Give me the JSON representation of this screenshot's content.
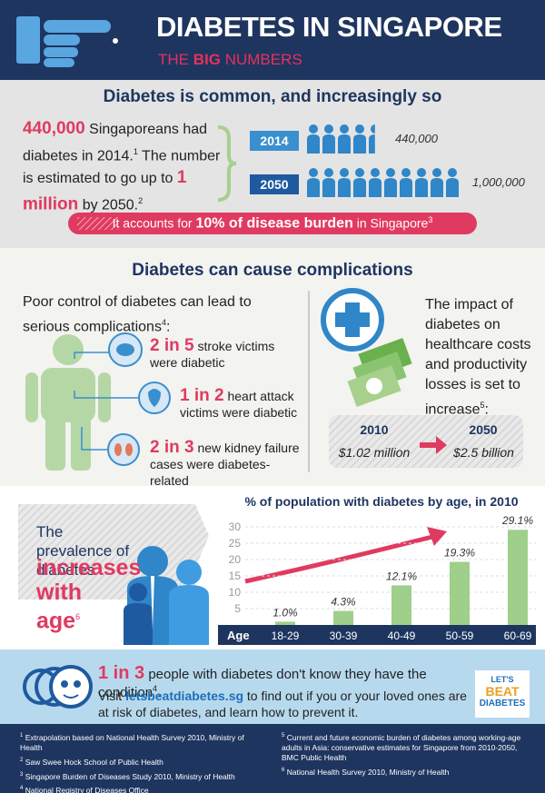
{
  "header": {
    "title": "DIABETES IN SINGAPORE",
    "subtitle": [
      "THE",
      "BIG",
      "NUMBERS"
    ]
  },
  "common": {
    "heading": "Diabetes is common, and increasingly so",
    "paragraph": [
      "440,000",
      "Singaporeans had diabetes in 2014.",
      "1",
      "The number is estimated to go up to",
      "1 million",
      "by 2050.",
      "2"
    ],
    "people": {
      "type": "icon",
      "categories": [
        "2014",
        "2050"
      ],
      "values": [
        440000,
        1000000
      ],
      "value_labels": [
        "440,000",
        "1,000,000"
      ],
      "color": "#2f86c8"
    },
    "burden": [
      "It accounts for",
      "10% of disease burden",
      "in Singapore",
      "3"
    ]
  },
  "complications": {
    "heading": "Diabetes can cause complications",
    "intro": [
      "Poor control of diabetes can lead to serious complications",
      "4",
      ":"
    ],
    "items": [
      {
        "stat": "2 in 5",
        "text": "stroke victims were diabetic"
      },
      {
        "stat": "1 in 2",
        "text": "heart attack victims were diabetic"
      },
      {
        "stat": "2 in 3",
        "text": "new kidney failure cases were diabetes-related"
      }
    ],
    "impact": [
      "The impact of diabetes on healthcare costs and productivity losses is set to increase",
      "5",
      ":"
    ],
    "costs": [
      {
        "year": "2010",
        "amount": "$1.02 million"
      },
      {
        "year": "2050",
        "amount": "$2.5 billion"
      }
    ]
  },
  "prevalence": {
    "text": "The prevalence of diabetes",
    "highlight": "increases with age",
    "note": "6"
  },
  "age_chart": {
    "type": "bar",
    "title": "% of population with diabetes by age, in 2010",
    "x_label": "Age",
    "categories": [
      "18-29",
      "30-39",
      "40-49",
      "50-59",
      "60-69"
    ],
    "values": [
      1.0,
      4.3,
      12.1,
      19.3,
      29.1
    ],
    "value_labels": [
      "1.0%",
      "4.3%",
      "12.1%",
      "19.3%",
      "29.1%"
    ],
    "color": "#9fcf8a",
    "ylim": [
      0,
      30
    ],
    "yticks": [
      5,
      10,
      15,
      20,
      25,
      30
    ],
    "grid": true
  },
  "awareness": {
    "line1": [
      "1 in 3",
      "people with diabetes don't know they have the condition",
      "4",
      "."
    ],
    "line2": [
      "Visit",
      "letsbeatdiabetes.sg",
      "to find out if you or your loved ones are at risk of diabetes, and learn how to prevent it."
    ],
    "logo": [
      "LET'S",
      "BEAT",
      "DIABETES"
    ]
  },
  "footnotes": [
    {
      "mark": "1",
      "text": "Extrapolation based on National Health Survey 2010, Ministry of Health"
    },
    {
      "mark": "2",
      "text": "Saw Swee Hock School of Public Health"
    },
    {
      "mark": "3",
      "text": "Singapore Burden of Diseases Study 2010, Ministry of Health"
    },
    {
      "mark": "4",
      "text": "National Registry of Diseases Office"
    },
    {
      "mark": "5",
      "text": "Current and future economic burden of diabetes among working-age adults in Asia: conservative estimates for Singapore from 2010-2050, BMC Public Health"
    },
    {
      "mark": "6",
      "text": "National Health Survey 2010, Ministry of Health"
    }
  ]
}
